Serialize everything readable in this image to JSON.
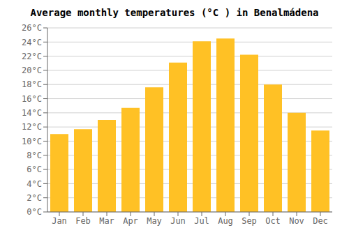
{
  "chart_data": {
    "type": "bar",
    "title": "Average monthly temperatures (°C ) in Benalmádena",
    "categories": [
      "Jan",
      "Feb",
      "Mar",
      "Apr",
      "May",
      "Jun",
      "Jul",
      "Aug",
      "Sep",
      "Oct",
      "Nov",
      "Dec"
    ],
    "values": [
      11.0,
      11.7,
      13.0,
      14.7,
      17.6,
      21.1,
      24.1,
      24.5,
      22.2,
      18.0,
      14.0,
      11.5
    ],
    "color": "#FFC125",
    "ylim": [
      0,
      26
    ],
    "yticks": [
      {
        "value": 0,
        "label": "0°C"
      },
      {
        "value": 2,
        "label": "2°C"
      },
      {
        "value": 4,
        "label": "4°C"
      },
      {
        "value": 6,
        "label": "6°C"
      },
      {
        "value": 8,
        "label": "8°C"
      },
      {
        "value": 10,
        "label": "10°C"
      },
      {
        "value": 12,
        "label": "12°C"
      },
      {
        "value": 14,
        "label": "14°C"
      },
      {
        "value": 16,
        "label": "16°C"
      },
      {
        "value": 18,
        "label": "18°C"
      },
      {
        "value": 20,
        "label": "20°C"
      },
      {
        "value": 22,
        "label": "22°C"
      },
      {
        "value": 24,
        "label": "24°C"
      },
      {
        "value": 26,
        "label": "26°C"
      }
    ],
    "grid": true
  }
}
